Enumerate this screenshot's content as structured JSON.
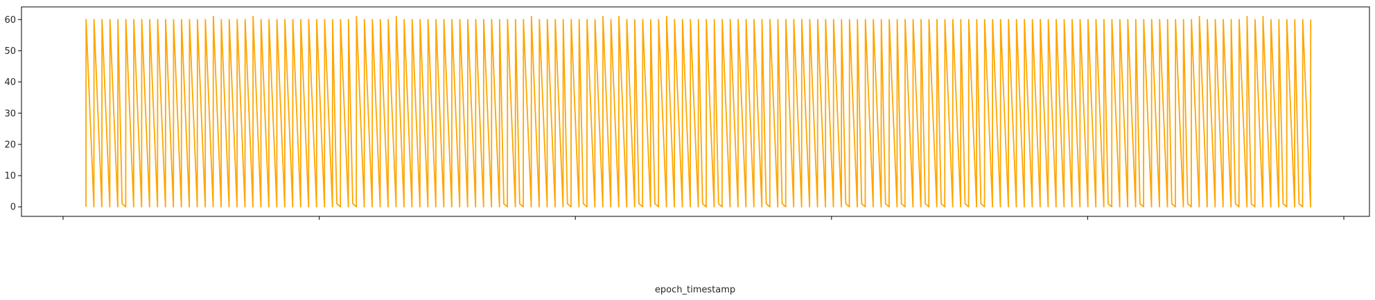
{
  "chart_data": {
    "type": "line",
    "title": "",
    "xlabel": "epoch_timestamp",
    "ylabel": "",
    "ylim": [
      -3.05,
      64.05
    ],
    "yticks": [
      0,
      10,
      20,
      30,
      40,
      50,
      60
    ],
    "ytick_labels": [
      "0",
      "10",
      "20",
      "30",
      "40",
      "50",
      "60"
    ],
    "xticks_count": 6,
    "xtick_labels": [
      "",
      "",
      "",
      "",
      "",
      ""
    ],
    "grid": false,
    "legend": "none",
    "x_range": [
      0,
      154
    ],
    "series": [
      {
        "color": "#ffa500",
        "cycles": 154,
        "low_value": 0,
        "high_value": 60,
        "peaks_61": [
          16,
          21,
          34,
          39,
          56,
          65,
          67,
          73,
          140,
          146,
          148
        ],
        "extra_one_before": [
          5,
          32,
          34,
          53,
          55,
          61,
          63,
          70,
          72,
          78,
          80,
          86,
          88,
          96,
          98,
          101,
          103,
          106,
          108,
          111,
          113,
          129,
          133,
          137,
          139,
          145,
          147,
          151,
          153
        ]
      }
    ]
  }
}
